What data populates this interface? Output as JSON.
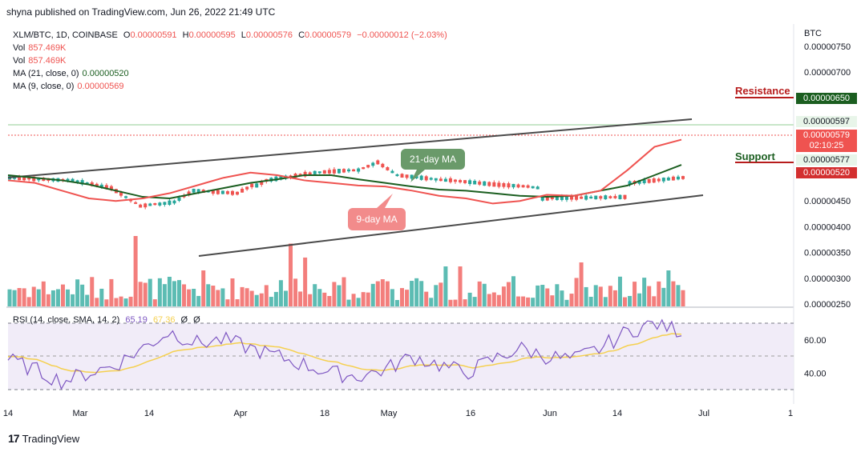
{
  "header": {
    "published_line": "shyna published on TradingView.com, Jun 26, 2022 21:49 UTC"
  },
  "legend": {
    "symbol": "XLM/BTC, 1D, COINBASE",
    "open_label": "O",
    "open": "0.00000591",
    "high_label": "H",
    "high": "0.00000595",
    "low_label": "L",
    "low": "0.00000576",
    "close_label": "C",
    "close": "0.00000579",
    "change": "−0.00000012 (−2.03%)",
    "vol1_label": "Vol",
    "vol1": "857.469K",
    "vol2_label": "Vol",
    "vol2": "857.469K",
    "ma21_label": "MA (21, close, 0)",
    "ma21": "0.00000520",
    "ma9_label": "MA (9, close, 0)",
    "ma9": "0.00000569"
  },
  "rsi_legend": {
    "label": "RSI (14, close, SMA, 14, 2)",
    "rsi": "65.19",
    "sma": "67.36",
    "extra1": "Ø",
    "extra2": "Ø"
  },
  "axis": {
    "currency": "BTC",
    "price_ticks": [
      "0.00000750",
      "0.00000700",
      "0.00000600",
      "0.00000450",
      "0.00000400",
      "0.00000350",
      "0.00000300",
      "0.00000250"
    ],
    "rsi_ticks": [
      "60.00",
      "40.00"
    ],
    "x_ticks": [
      "14",
      "Mar",
      "14",
      "Apr",
      "18",
      "May",
      "16",
      "Jun",
      "14",
      "Jul",
      "1"
    ]
  },
  "price_boxes": {
    "resistance": "0.00000650",
    "level597": "0.00000597",
    "last": "0.00000579",
    "countdown": "02:10:25",
    "level577": "0.00000577",
    "support": "0.00000520"
  },
  "annotations": {
    "resistance": "Resistance",
    "support": "Support",
    "ma21": "21-day MA",
    "ma9": "9-day MA"
  },
  "colors": {
    "up": "#26a69a",
    "down": "#ef5350",
    "ma21": "#1b5e20",
    "ma9": "#ef5350",
    "rsi": "#7e57c2",
    "rsi_sma": "#f5d04f",
    "resistance": "#b71c1c",
    "support_box": "#d32f2f",
    "resistance_box": "#1b5e20"
  },
  "footer": {
    "brand": "TradingView"
  },
  "chart_data": {
    "type": "line",
    "ylim": [
      2.5e-06,
      7.5e-06
    ],
    "series": [
      {
        "name": "MA (21, close, 0)",
        "values": [
          5e-06,
          4.95e-06,
          4.9e-06,
          4.82e-06,
          4.7e-06,
          4.58e-06,
          4.55e-06,
          4.65e-06,
          4.75e-06,
          4.85e-06,
          4.92e-06,
          5e-06,
          5e-06,
          4.92e-06,
          4.85e-06,
          4.78e-06,
          4.72e-06,
          4.7e-06,
          4.65e-06,
          4.6e-06,
          4.58e-06,
          4.6e-06,
          4.7e-06,
          4.8e-06,
          5e-06,
          5.2e-06
        ]
      },
      {
        "name": "MA (9, close, 0)",
        "values": [
          4.9e-06,
          4.85e-06,
          4.7e-06,
          4.55e-06,
          4.5e-06,
          4.55e-06,
          4.65e-06,
          4.8e-06,
          4.95e-06,
          5.05e-06,
          5e-06,
          4.9e-06,
          4.85e-06,
          4.8e-06,
          4.78e-06,
          4.7e-06,
          4.6e-06,
          4.55e-06,
          4.45e-06,
          4.5e-06,
          4.62e-06,
          4.6e-06,
          4.7e-06,
          5.1e-06,
          5.55e-06,
          5.69e-06
        ]
      },
      {
        "name": "RSI (14, close, SMA, 14, 2)",
        "values": [
          48,
          42,
          35,
          40,
          45,
          55,
          65,
          58,
          60,
          55,
          50,
          45,
          40,
          38,
          42,
          50,
          45,
          40,
          48,
          55,
          50,
          48,
          55,
          65,
          70,
          65.19
        ]
      }
    ]
  }
}
